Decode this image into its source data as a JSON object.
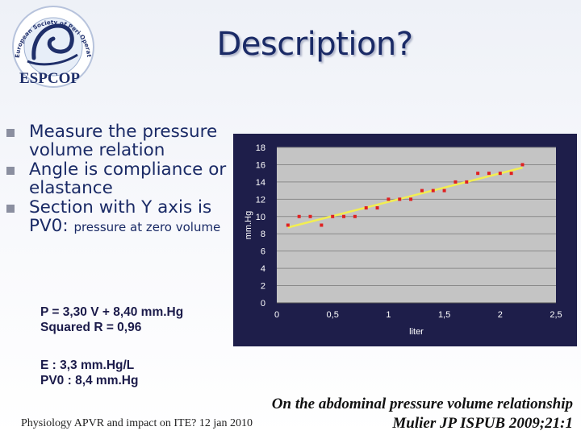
{
  "logo": {
    "ring_text": "European Society of Peri Operative Care of the Obese Patient",
    "wordmark": "ESPCOP"
  },
  "title": "Description?",
  "bullets": [
    {
      "main": "Measure the pressure volume relation",
      "small": ""
    },
    {
      "main": "Angle is compliance or elastance",
      "small": ""
    },
    {
      "main": "Section with Y axis is PV0: ",
      "small": "pressure at zero volume"
    }
  ],
  "equation": {
    "line1": "P = 3,30 V + 8,40 mm.Hg",
    "line2": "Squared R = 0,96"
  },
  "results": {
    "line1": "E : 3,3 mm.Hg/L",
    "line2": "PV0 : 8,4 mm.Hg"
  },
  "chart_data": {
    "type": "scatter",
    "xlabel": "liter",
    "ylabel": "mm.Hg",
    "xlim": [
      0,
      2.5
    ],
    "ylim": [
      0,
      18
    ],
    "x_ticks": [
      "0",
      "0,5",
      "1",
      "1,5",
      "2",
      "2,5"
    ],
    "y_ticks": [
      "0",
      "2",
      "4",
      "6",
      "8",
      "10",
      "12",
      "14",
      "16",
      "18"
    ],
    "grid": "horizontal",
    "points": [
      [
        0.1,
        9.0
      ],
      [
        0.2,
        10.0
      ],
      [
        0.3,
        10.0
      ],
      [
        0.4,
        9.0
      ],
      [
        0.5,
        10.0
      ],
      [
        0.6,
        10.0
      ],
      [
        0.7,
        10.0
      ],
      [
        0.8,
        11.0
      ],
      [
        0.9,
        11.0
      ],
      [
        1.0,
        12.0
      ],
      [
        1.1,
        12.0
      ],
      [
        1.2,
        12.0
      ],
      [
        1.3,
        13.0
      ],
      [
        1.4,
        13.0
      ],
      [
        1.5,
        13.0
      ],
      [
        1.6,
        14.0
      ],
      [
        1.7,
        14.0
      ],
      [
        1.8,
        15.0
      ],
      [
        1.9,
        15.0
      ],
      [
        2.0,
        15.0
      ],
      [
        2.1,
        15.0
      ],
      [
        2.2,
        16.0
      ]
    ],
    "trendline": {
      "slope": 3.3,
      "intercept": 8.4,
      "x_range": [
        0.1,
        2.2
      ]
    },
    "colors": {
      "frame": "#1e1e4a",
      "plot": "#c4c4c4",
      "point": "#e02020",
      "trend": "#f2ee52",
      "axis_text": "#ffffff"
    }
  },
  "footer": {
    "left": "Physiology APVR and impact on ITE? 12 jan 2010",
    "citation_line1": "On the abdominal pressure volume relationship",
    "citation_line2": "Mulier  JP   ISPUB 2009;21:1"
  }
}
